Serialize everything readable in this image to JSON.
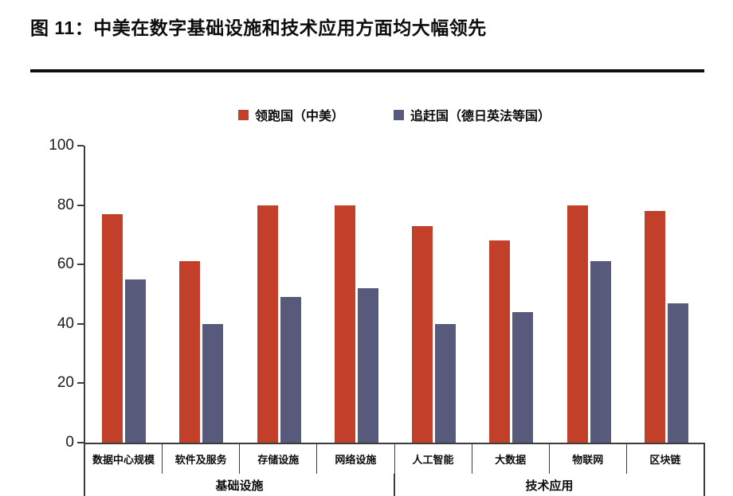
{
  "figure": {
    "title": "图 11：中美在数字基础设施和技术应用方面均大幅领先"
  },
  "chart_data": {
    "type": "bar",
    "title": "图 11：中美在数字基础设施和技术应用方面均大幅领先",
    "categories": [
      "数据中心规模",
      "软件及服务",
      "存储设施",
      "网络设施",
      "人工智能",
      "大数据",
      "物联网",
      "区块链"
    ],
    "category_groups": [
      {
        "label": "基础设施",
        "span": 4
      },
      {
        "label": "技术应用",
        "span": 4
      }
    ],
    "series": [
      {
        "name": "领跑国（中美）",
        "color": "#c2402a",
        "values": [
          77,
          61,
          80,
          80,
          73,
          68,
          80,
          78
        ]
      },
      {
        "name": "追赶国（德日英法等国）",
        "color": "#585a7c",
        "values": [
          55,
          40,
          49,
          52,
          40,
          44,
          61,
          47
        ]
      }
    ],
    "xlabel": "",
    "ylabel": "",
    "ylim": [
      0,
      100
    ],
    "yticks": [
      0,
      20,
      40,
      60,
      80,
      100
    ],
    "grid": false,
    "legend_position": "top-center",
    "axis_color": "#3d3d3d"
  }
}
